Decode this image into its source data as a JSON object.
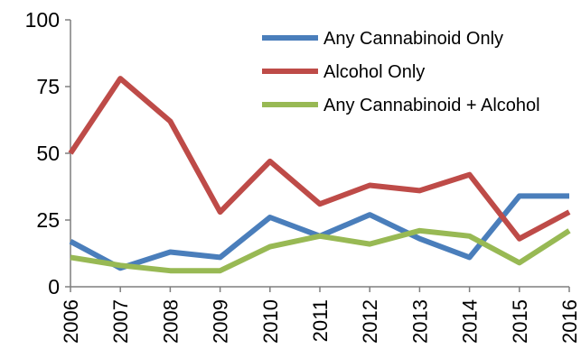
{
  "chart_data": {
    "type": "line",
    "title": "",
    "xlabel": "",
    "ylabel": "",
    "x": [
      "2006",
      "2007",
      "2008",
      "2009",
      "2010",
      "2011",
      "2012",
      "2013",
      "2014",
      "2015",
      "2016"
    ],
    "ylim": [
      0,
      100
    ],
    "yticks": [
      "0",
      "25",
      "50",
      "75",
      "100"
    ],
    "grid": false,
    "legend_position": "top-right",
    "series": [
      {
        "name": "Any Cannabinoid Only",
        "color": "#4a7ebb",
        "values": [
          17,
          7,
          13,
          11,
          26,
          19,
          27,
          18,
          11,
          34,
          34
        ]
      },
      {
        "name": "Alcohol Only",
        "color": "#be4b48",
        "values": [
          50,
          78,
          62,
          28,
          47,
          31,
          38,
          36,
          42,
          18,
          28
        ]
      },
      {
        "name": "Any Cannabinoid + Alcohol",
        "color": "#98b954",
        "values": [
          11,
          8,
          6,
          6,
          15,
          19,
          16,
          21,
          19,
          9,
          21
        ]
      }
    ]
  }
}
